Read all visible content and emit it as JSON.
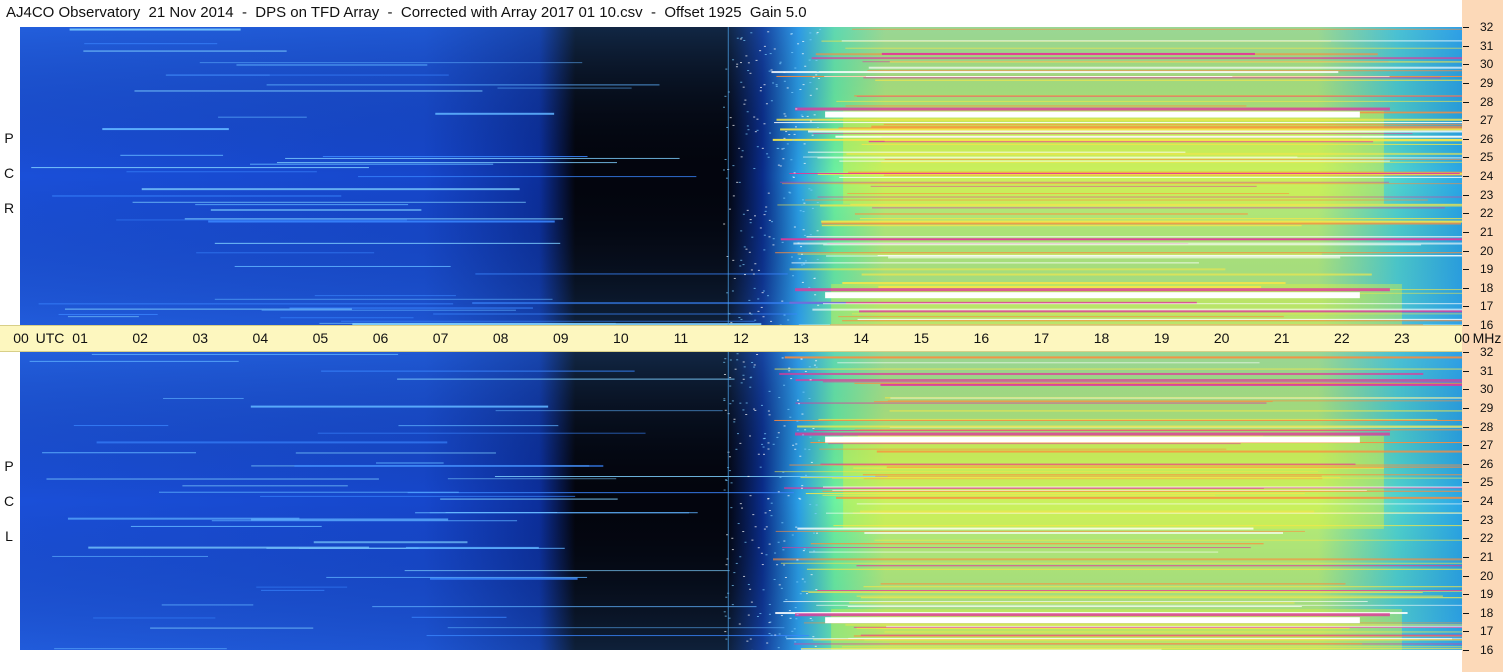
{
  "title": "AJ4CO Observatory  21 Nov 2014  -  DPS on TFD Array  -  Corrected with Array 2017 01 10.csv  -  Offset 1925  Gain 5.0",
  "top_panel_label": [
    "R",
    "C",
    "P"
  ],
  "bottom_panel_label": [
    "L",
    "C",
    "P"
  ],
  "time_unit_label": "UTC",
  "freq_unit_label": "MHz",
  "colors": {
    "background_blue": "#1b4fd6",
    "night_black": "#03050e",
    "green": "#6cf2a0",
    "yellow": "#dff23a",
    "magenta": "#e0389a",
    "white": "#ffffff",
    "timebar": "#fdf7bf",
    "freq_strip": "#fcd9b8"
  },
  "chart_data": {
    "type": "heatmap",
    "title": "AJ4CO Observatory  21 Nov 2014  -  DPS on TFD Array  -  Corrected with Array 2017 01 10.csv  -  Offset 1925  Gain 5.0",
    "x_range": [
      0,
      24
    ],
    "y_range": [
      16,
      32
    ],
    "x_ticks": [
      "00",
      "01",
      "02",
      "03",
      "04",
      "05",
      "06",
      "07",
      "08",
      "09",
      "10",
      "11",
      "12",
      "13",
      "14",
      "15",
      "16",
      "17",
      "18",
      "19",
      "20",
      "21",
      "22",
      "23",
      "00"
    ],
    "y_ticks": [
      "16",
      "17",
      "18",
      "19",
      "20",
      "21",
      "22",
      "23",
      "24",
      "25",
      "26",
      "27",
      "28",
      "29",
      "30",
      "31",
      "32"
    ],
    "panels": [
      {
        "name": "RCP",
        "label": "R C P"
      },
      {
        "name": "LCP",
        "label": "L C P"
      }
    ],
    "features": {
      "dark_interval_utc": [
        9.2,
        12.3
      ],
      "high_activity_utc": [
        13.0,
        23.0
      ],
      "bright_bands_mhz": [
        17.6,
        27.3
      ]
    }
  }
}
